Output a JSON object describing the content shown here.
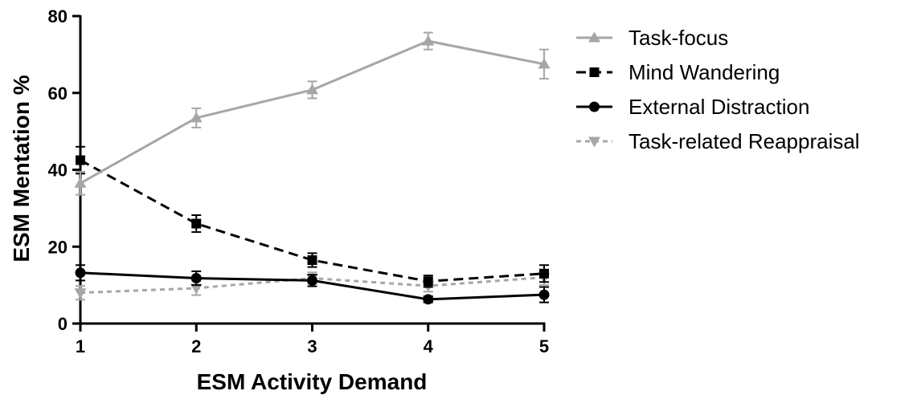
{
  "chart_data": {
    "type": "line",
    "xlabel": "ESM Activity Demand",
    "ylabel": "ESM Mentation %",
    "x": [
      1,
      2,
      3,
      4,
      5
    ],
    "xlim": [
      1,
      5
    ],
    "ylim": [
      0,
      80
    ],
    "xticks": [
      "1",
      "2",
      "3",
      "4",
      "5"
    ],
    "yticks": [
      "0",
      "20",
      "40",
      "60",
      "80"
    ],
    "grid": false,
    "legend_position": "top-right",
    "series": [
      {
        "name": "Task-focus",
        "values": [
          36.5,
          53.5,
          60.8,
          73.5,
          67.5
        ],
        "errors": [
          3.0,
          2.5,
          2.2,
          2.2,
          3.8
        ],
        "color": "#a6a6a6",
        "dash": "solid",
        "marker": "triangle-up"
      },
      {
        "name": "Mind Wandering",
        "values": [
          42.5,
          26.0,
          16.5,
          11.0,
          13.0
        ],
        "errors": [
          3.5,
          2.2,
          1.8,
          1.5,
          2.2
        ],
        "color": "#000000",
        "dash": "dashed",
        "marker": "square"
      },
      {
        "name": "External Distraction",
        "values": [
          13.2,
          11.8,
          11.2,
          6.3,
          7.5
        ],
        "errors": [
          2.0,
          1.8,
          1.5,
          0.8,
          2.0
        ],
        "color": "#000000",
        "dash": "solid",
        "marker": "circle"
      },
      {
        "name": "Task-related Reappraisal",
        "values": [
          8.0,
          9.2,
          11.8,
          9.8,
          12.0
        ],
        "errors": [
          1.8,
          1.8,
          1.5,
          1.5,
          2.0
        ],
        "color": "#a6a6a6",
        "dash": "dotted",
        "marker": "triangle-down"
      }
    ]
  }
}
